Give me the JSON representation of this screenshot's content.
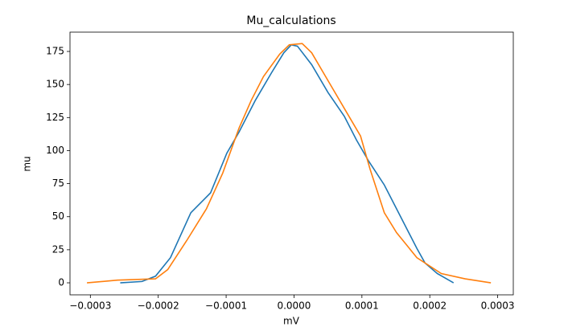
{
  "chart_data": {
    "type": "line",
    "title": "Mu_calculations",
    "x_label": "mV",
    "y_label": "mu",
    "series": [
      {
        "color": "#1f77b4",
        "x": [
          -0.000256,
          -0.000224,
          -0.000204,
          -0.000182,
          -0.000152,
          -0.000123,
          -9.9e-05,
          -8.1e-05,
          -5.7e-05,
          -3.3e-05,
          -1.5e-05,
          -4e-06,
          5e-06,
          2.6e-05,
          5e-05,
          7.4e-05,
          9.2e-05,
          0.00011,
          0.000133,
          0.000157,
          0.000181,
          0.000193,
          0.000211,
          0.000235
        ],
        "values": [
          0,
          1,
          5,
          19,
          53,
          68,
          98,
          114,
          138,
          159,
          174,
          180,
          179,
          165,
          144,
          126,
          108,
          92,
          74,
          50,
          26,
          15,
          7,
          0
        ]
      },
      {
        "color": "#ff7f0e",
        "x": [
          -0.000305,
          -0.00026,
          -0.000204,
          -0.000186,
          -0.000158,
          -0.000129,
          -0.000105,
          -8.1e-05,
          -6.3e-05,
          -4.5e-05,
          -2.1e-05,
          -7e-06,
          1.2e-05,
          2.6e-05,
          5e-05,
          7.4e-05,
          9.8e-05,
          0.000112,
          0.000133,
          0.000151,
          0.000181,
          0.000217,
          0.000252,
          0.00029
        ],
        "values": [
          0,
          2,
          3,
          10,
          32,
          56,
          83,
          117,
          138,
          156,
          173,
          180,
          181,
          174,
          153,
          132,
          111,
          86,
          53,
          38,
          19,
          7,
          3,
          0
        ]
      }
    ],
    "xlim": [
      -0.00033,
      0.000323
    ],
    "xticks": [
      {
        "value": -0.0003,
        "label": "−0.0003"
      },
      {
        "value": -0.0002,
        "label": "−0.0002"
      },
      {
        "value": -0.0001,
        "label": "−0.0001"
      },
      {
        "value": 0,
        "label": "0.0000"
      },
      {
        "value": 0.0001,
        "label": "0.0001"
      },
      {
        "value": 0.0002,
        "label": "0.0002"
      },
      {
        "value": 0.0003,
        "label": "0.0003"
      }
    ],
    "ylim": [
      -9.1,
      189.6
    ],
    "yticks": [
      0,
      25,
      50,
      75,
      100,
      125,
      150,
      175
    ],
    "grid": false
  }
}
